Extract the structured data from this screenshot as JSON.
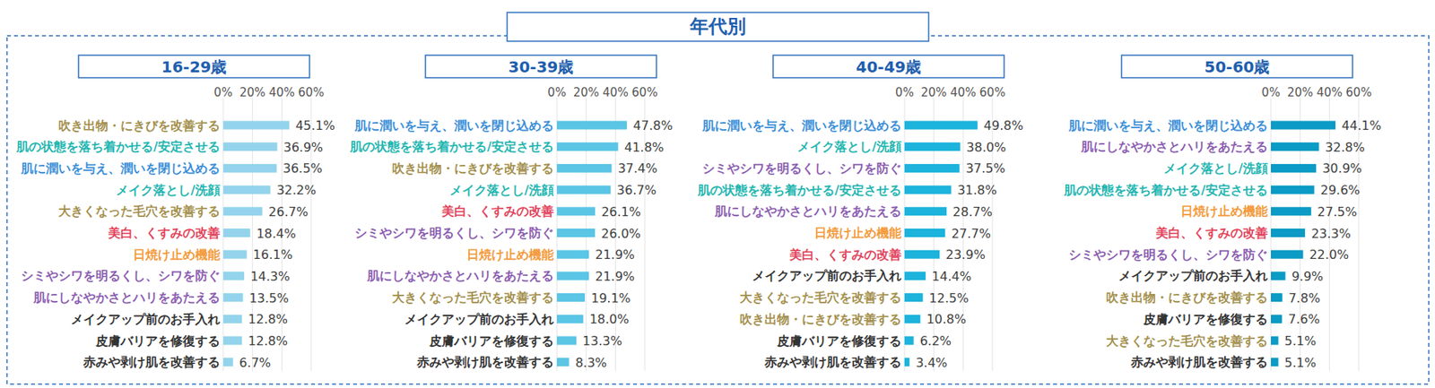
{
  "title": "年代別",
  "chart_data": [
    {
      "type": "bar",
      "orientation": "horizontal",
      "title": "16-29歳",
      "color": "#93d4ec",
      "grid": true,
      "data_labels": true,
      "xlim": [
        0,
        60
      ],
      "xticks": [
        {
          "value": 0,
          "label": "0%"
        },
        {
          "value": 20,
          "label": "20%"
        },
        {
          "value": 40,
          "label": "40%"
        },
        {
          "value": 60,
          "label": "60%"
        }
      ],
      "categories": [
        "吹き出物・にきびを改善する",
        "肌の状態を落ち着かせる/安定させる",
        "肌に潤いを与え、潤いを閉じ込める",
        "メイク落とし/洗顔",
        "大きくなった毛穴を改善する",
        "美白、くすみの改善",
        "日焼け止め機能",
        "シミやシワを明るくし、シワを防ぐ",
        "肌にしなやかさとハリをあたえる",
        "メイクアップ前のお手入れ",
        "皮膚バリアを修復する",
        "赤みや剥け肌を改善する"
      ],
      "values": [
        45.1,
        36.9,
        36.5,
        32.2,
        26.7,
        18.4,
        16.1,
        14.3,
        13.5,
        12.8,
        12.8,
        6.7
      ],
      "value_labels": [
        "45.1%",
        "36.9%",
        "36.5%",
        "32.2%",
        "26.7%",
        "18.4%",
        "16.1%",
        "14.3%",
        "13.5%",
        "12.8%",
        "12.8%",
        "6.7%"
      ]
    },
    {
      "type": "bar",
      "orientation": "horizontal",
      "title": "30-39歳",
      "color": "#5bc5e6",
      "grid": true,
      "data_labels": true,
      "xlim": [
        0,
        60
      ],
      "xticks": [
        {
          "value": 0,
          "label": "0%"
        },
        {
          "value": 20,
          "label": "20%"
        },
        {
          "value": 40,
          "label": "40%"
        },
        {
          "value": 60,
          "label": "60%"
        }
      ],
      "categories": [
        "肌に潤いを与え、潤いを閉じ込める",
        "肌の状態を落ち着かせる/安定させる",
        "吹き出物・にきびを改善する",
        "メイク落とし/洗顔",
        "美白、くすみの改善",
        "シミやシワを明るくし、シワを防ぐ",
        "日焼け止め機能",
        "肌にしなやかさとハリをあたえる",
        "大きくなった毛穴を改善する",
        "メイクアップ前のお手入れ",
        "皮膚バリアを修復する",
        "赤みや剥け肌を改善する"
      ],
      "values": [
        47.8,
        41.8,
        37.4,
        36.7,
        26.1,
        26.0,
        21.9,
        21.9,
        19.1,
        18.0,
        13.3,
        8.3
      ],
      "value_labels": [
        "47.8%",
        "41.8%",
        "37.4%",
        "36.7%",
        "26.1%",
        "26.0%",
        "21.9%",
        "21.9%",
        "19.1%",
        "18.0%",
        "13.3%",
        "8.3%"
      ]
    },
    {
      "type": "bar",
      "orientation": "horizontal",
      "title": "40-49歳",
      "color": "#1cb3dc",
      "grid": true,
      "data_labels": true,
      "xlim": [
        0,
        60
      ],
      "xticks": [
        {
          "value": 0,
          "label": "0%"
        },
        {
          "value": 20,
          "label": "20%"
        },
        {
          "value": 40,
          "label": "40%"
        },
        {
          "value": 60,
          "label": "60%"
        }
      ],
      "categories": [
        "肌に潤いを与え、潤いを閉じ込める",
        "メイク落とし/洗顔",
        "シミやシワを明るくし、シワを防ぐ",
        "肌の状態を落ち着かせる/安定させる",
        "肌にしなやかさとハリをあたえる",
        "日焼け止め機能",
        "美白、くすみの改善",
        "メイクアップ前のお手入れ",
        "大きくなった毛穴を改善する",
        "吹き出物・にきびを改善する",
        "皮膚バリアを修復する",
        "赤みや剥け肌を改善する"
      ],
      "values": [
        49.8,
        38.0,
        37.5,
        31.8,
        28.7,
        27.7,
        23.9,
        14.4,
        12.5,
        10.8,
        6.2,
        3.4
      ],
      "value_labels": [
        "49.8%",
        "38.0%",
        "37.5%",
        "31.8%",
        "28.7%",
        "27.7%",
        "23.9%",
        "14.4%",
        "12.5%",
        "10.8%",
        "6.2%",
        "3.4%"
      ]
    },
    {
      "type": "bar",
      "orientation": "horizontal",
      "title": "50-60歳",
      "color": "#0b9bc4",
      "grid": true,
      "data_labels": true,
      "xlim": [
        0,
        60
      ],
      "xticks": [
        {
          "value": 0,
          "label": "0%"
        },
        {
          "value": 20,
          "label": "20%"
        },
        {
          "value": 40,
          "label": "40%"
        },
        {
          "value": 60,
          "label": "60%"
        }
      ],
      "categories": [
        "肌に潤いを与え、潤いを閉じ込める",
        "肌にしなやかさとハリをあたえる",
        "メイク落とし/洗顔",
        "肌の状態を落ち着かせる/安定させる",
        "日焼け止め機能",
        "美白、くすみの改善",
        "シミやシワを明るくし、シワを防ぐ",
        "メイクアップ前のお手入れ",
        "吹き出物・にきびを改善する",
        "皮膚バリアを修復する",
        "大きくなった毛穴を改善する",
        "赤みや剥け肌を改善する"
      ],
      "values": [
        44.1,
        32.8,
        30.9,
        29.6,
        27.5,
        23.3,
        22.0,
        9.9,
        7.8,
        7.6,
        5.1,
        5.1
      ],
      "value_labels": [
        "44.1%",
        "32.8%",
        "30.9%",
        "29.6%",
        "27.5%",
        "23.3%",
        "22.0%",
        "9.9%",
        "7.8%",
        "7.6%",
        "5.1%",
        "5.1%"
      ]
    }
  ]
}
